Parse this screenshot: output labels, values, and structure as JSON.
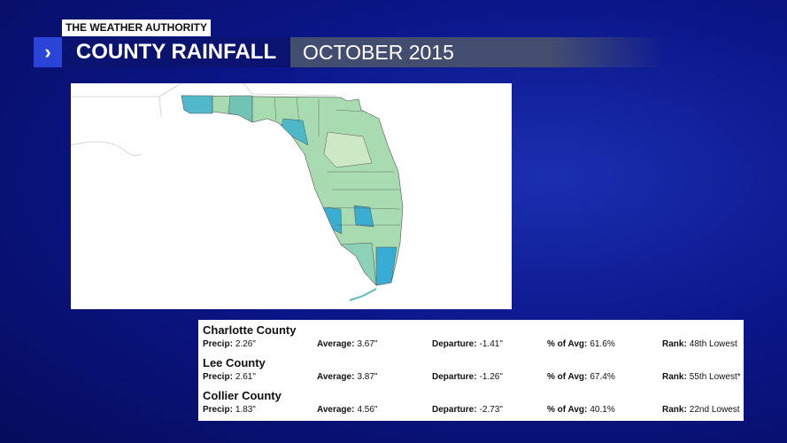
{
  "header": {
    "brand": "THE WEATHER AUTHORITY",
    "title": "COUNTY RAINFALL",
    "subtitle": "OCTOBER 2015"
  },
  "counties": [
    {
      "name": "Charlotte County",
      "fields": [
        {
          "label": "Precip:",
          "value": "2.26\""
        },
        {
          "label": "Average:",
          "value": "3.67\""
        },
        {
          "label": "Departure:",
          "value": "-1.41\""
        },
        {
          "label": "% of Avg:",
          "value": "61.6%"
        },
        {
          "label": "Rank:",
          "value": "48th Lowest"
        }
      ]
    },
    {
      "name": "Lee County",
      "fields": [
        {
          "label": "Precip:",
          "value": "2.61\""
        },
        {
          "label": "Average:",
          "value": "3.87\""
        },
        {
          "label": "Departure:",
          "value": "-1.26\""
        },
        {
          "label": "% of Avg:",
          "value": "67.4%"
        },
        {
          "label": "Rank:",
          "value": "55th Lowest*"
        }
      ]
    },
    {
      "name": "Collier County",
      "fields": [
        {
          "label": "Precip:",
          "value": "1.83\""
        },
        {
          "label": "Average:",
          "value": "4.56\""
        },
        {
          "label": "Departure:",
          "value": "-2.73\""
        },
        {
          "label": "% of Avg:",
          "value": "40.1%"
        },
        {
          "label": "Rank:",
          "value": "22nd Lowest"
        }
      ]
    }
  ]
}
